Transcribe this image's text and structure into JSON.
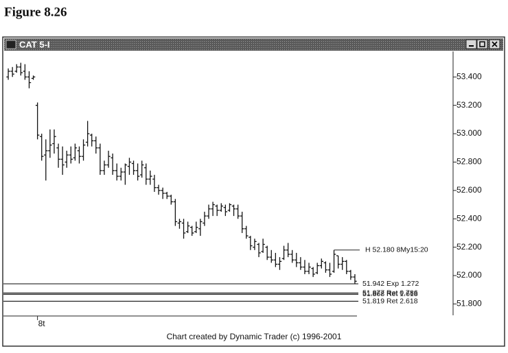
{
  "figure_label": "Figure 8.26",
  "chart_data": {
    "type": "ohlc",
    "title": "CAT 5-I",
    "footer": "Chart created by Dynamic Trader (c) 1996-2001",
    "color": "#111111",
    "categories": [
      null,
      null,
      null,
      null,
      null,
      null,
      null,
      "8t",
      null,
      null,
      null,
      null,
      null,
      null,
      null,
      null,
      null,
      null,
      null,
      null,
      null,
      null,
      null,
      null,
      null,
      null,
      null,
      null,
      null,
      null,
      null,
      null,
      null,
      null,
      null,
      null,
      null,
      null,
      null,
      null,
      null,
      null,
      null,
      null,
      null,
      null,
      null,
      null,
      null,
      null,
      null,
      null,
      null,
      null,
      null,
      null,
      null,
      null,
      null,
      null,
      null,
      null,
      null,
      null,
      null,
      null,
      null,
      null,
      null,
      null,
      null,
      null,
      null,
      null,
      null,
      null,
      null,
      null,
      null,
      null,
      null,
      null,
      null,
      null
    ],
    "open": [
      53.4,
      53.44,
      53.44,
      53.47,
      53.44,
      53.4,
      53.39,
      53.2,
      52.98,
      52.85,
      52.88,
      52.93,
      52.9,
      52.82,
      52.8,
      52.85,
      52.83,
      52.88,
      52.84,
      52.94,
      52.99,
      52.95,
      52.9,
      52.74,
      52.78,
      52.83,
      52.74,
      52.7,
      52.73,
      52.77,
      52.79,
      52.74,
      52.71,
      52.76,
      52.68,
      52.68,
      52.62,
      52.6,
      52.58,
      52.56,
      52.52,
      52.37,
      52.37,
      52.31,
      52.34,
      52.31,
      52.33,
      52.37,
      52.42,
      52.47,
      52.49,
      52.46,
      52.48,
      52.46,
      52.49,
      52.47,
      52.42,
      52.33,
      52.27,
      52.2,
      52.22,
      52.17,
      52.2,
      52.13,
      52.11,
      52.08,
      52.12,
      52.18,
      52.15,
      52.11,
      52.09,
      52.06,
      52.03,
      52.05,
      52.02,
      52.07,
      52.09,
      52.04,
      52.03,
      52.14,
      52.08,
      52.1,
      52.03,
      51.99
    ],
    "high": [
      53.46,
      53.47,
      53.49,
      53.5,
      53.49,
      53.44,
      53.41,
      53.22,
      53.0,
      52.96,
      53.03,
      53.03,
      52.93,
      52.91,
      52.88,
      52.91,
      52.93,
      52.91,
      52.96,
      53.09,
      53.0,
      52.98,
      52.93,
      52.81,
      52.88,
      52.86,
      52.79,
      52.76,
      52.79,
      52.83,
      52.81,
      52.79,
      52.81,
      52.79,
      52.74,
      52.71,
      52.64,
      52.62,
      52.59,
      52.57,
      52.54,
      52.4,
      52.4,
      52.38,
      52.35,
      52.38,
      52.4,
      52.45,
      52.5,
      52.52,
      52.5,
      52.51,
      52.5,
      52.51,
      52.5,
      52.5,
      52.45,
      52.35,
      52.28,
      52.26,
      52.23,
      52.26,
      52.21,
      52.18,
      52.16,
      52.13,
      52.21,
      52.23,
      52.18,
      52.16,
      52.13,
      52.11,
      52.09,
      52.06,
      52.09,
      52.12,
      52.1,
      52.09,
      52.18,
      52.14,
      52.13,
      52.11,
      52.04,
      52.01
    ],
    "low": [
      53.38,
      53.4,
      53.43,
      53.41,
      53.38,
      53.32,
      53.38,
      52.96,
      52.81,
      52.67,
      52.83,
      52.86,
      52.76,
      52.71,
      52.76,
      52.79,
      52.81,
      52.79,
      52.81,
      52.91,
      52.91,
      52.86,
      52.71,
      52.71,
      52.76,
      52.71,
      52.67,
      52.67,
      52.64,
      52.71,
      52.71,
      52.67,
      52.69,
      52.64,
      52.64,
      52.59,
      52.57,
      52.54,
      52.54,
      52.5,
      52.35,
      52.33,
      52.26,
      52.3,
      52.28,
      52.3,
      52.28,
      52.35,
      52.4,
      52.42,
      52.42,
      52.45,
      52.42,
      52.45,
      52.42,
      52.4,
      52.3,
      52.26,
      52.18,
      52.18,
      52.13,
      52.16,
      52.11,
      52.09,
      52.06,
      52.04,
      52.11,
      52.13,
      52.09,
      52.06,
      52.04,
      52.01,
      52.01,
      51.99,
      52.01,
      52.05,
      52.02,
      51.99,
      52.02,
      52.05,
      52.04,
      52.01,
      51.97,
      51.94
    ],
    "close": [
      53.44,
      53.42,
      53.47,
      53.43,
      53.4,
      53.36,
      53.4,
      52.99,
      52.84,
      52.88,
      52.92,
      52.98,
      52.82,
      52.78,
      52.85,
      52.82,
      52.9,
      52.84,
      52.92,
      53.0,
      52.95,
      52.9,
      52.74,
      52.78,
      52.84,
      52.74,
      52.7,
      52.73,
      52.78,
      52.8,
      52.74,
      52.7,
      52.78,
      52.68,
      52.7,
      52.62,
      52.6,
      52.58,
      52.56,
      52.52,
      52.38,
      52.38,
      52.3,
      52.35,
      52.3,
      52.34,
      52.38,
      52.42,
      52.47,
      52.5,
      52.46,
      52.49,
      52.45,
      52.5,
      52.47,
      52.42,
      52.33,
      52.28,
      52.21,
      52.24,
      52.16,
      52.22,
      52.13,
      52.11,
      52.08,
      52.1,
      52.18,
      52.15,
      52.11,
      52.09,
      52.06,
      52.03,
      52.06,
      52.01,
      52.07,
      52.1,
      52.04,
      52.01,
      52.15,
      52.08,
      52.1,
      52.03,
      51.99,
      51.96
    ],
    "ylim": [
      51.72,
      53.58
    ],
    "yticks": [
      {
        "value": 51.8,
        "label": "51.800"
      },
      {
        "value": 52.0,
        "label": "52.000"
      },
      {
        "value": 52.2,
        "label": "52.200"
      },
      {
        "value": 52.4,
        "label": "52.400"
      },
      {
        "value": 52.6,
        "label": "52.600"
      },
      {
        "value": 52.8,
        "label": "52.800"
      },
      {
        "value": 53.0,
        "label": "53.000"
      },
      {
        "value": 53.2,
        "label": "53.200"
      },
      {
        "value": 53.4,
        "label": "53.400"
      }
    ],
    "annotation": {
      "value": 52.18,
      "label": "H 52.180 8My15:20",
      "index": 78
    },
    "levels": [
      {
        "value": 51.942,
        "label": "51.942 Exp 1.272"
      },
      {
        "value": 51.877,
        "label": "51.877 Ret 0.786"
      },
      {
        "value": 51.868,
        "label": "51.868 Ret 1.618"
      },
      {
        "value": 51.819,
        "label": "51.819 Ret 2.618"
      }
    ]
  }
}
